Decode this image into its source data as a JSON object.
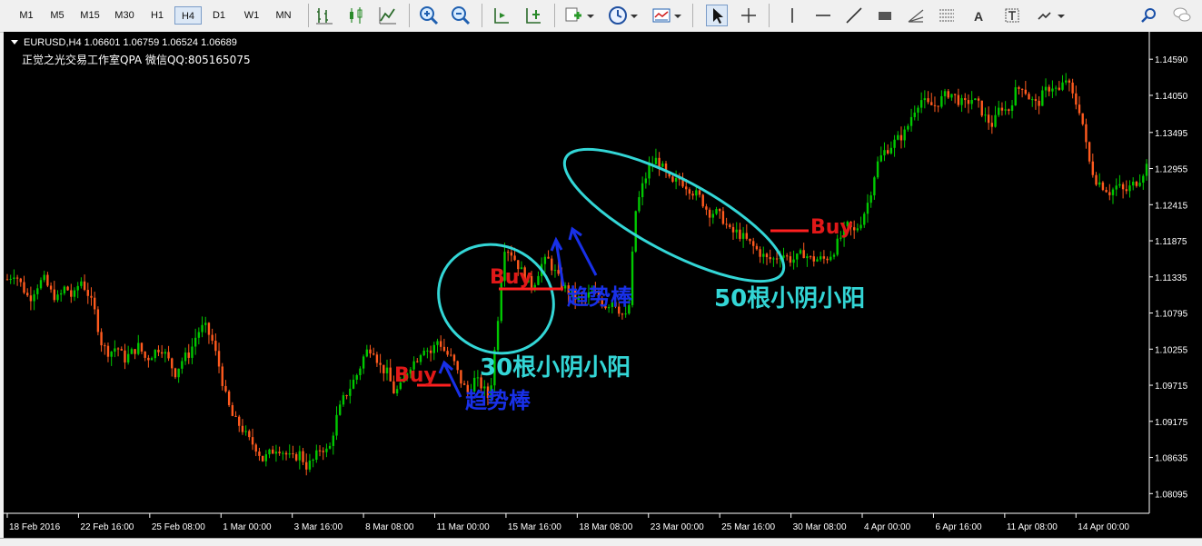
{
  "toolbar": {
    "timeframes": [
      "M1",
      "M5",
      "M15",
      "M30",
      "H1",
      "H4",
      "D1",
      "W1",
      "MN"
    ],
    "active_timeframe": "H4"
  },
  "chart": {
    "title_line": "EURUSD,H4  1.06601 1.06759 1.06524 1.06689",
    "subtitle": "正觉之光交易工作室QPA 微信QQ:805165075",
    "price_labels": [
      "1.14590",
      "1.14050",
      "1.13495",
      "1.12955",
      "1.12415",
      "1.11875",
      "1.11335",
      "1.10795",
      "1.10255",
      "1.09715",
      "1.09175",
      "1.08635",
      "1.08095"
    ],
    "time_labels": [
      "18 Feb 2016",
      "22 Feb 16:00",
      "25 Feb 08:00",
      "1 Mar 00:00",
      "3 Mar 16:00",
      "8 Mar 08:00",
      "11 Mar 00:00",
      "15 Mar 16:00",
      "18 Mar 08:00",
      "23 Mar 00:00",
      "25 Mar 16:00",
      "30 Mar 08:00",
      "4 Apr 00:00",
      "6 Apr 16:00",
      "11 Apr 08:00",
      "14 Apr 00:00"
    ],
    "up_color": "#00c800",
    "down_color": "#ff5a1e"
  },
  "chart_data": {
    "type": "candlestick",
    "symbol": "EURUSD",
    "timeframe": "H4",
    "ylim": [
      1.078,
      1.15
    ],
    "points": [
      1.113,
      1.114,
      1.112,
      1.11,
      1.112,
      1.113,
      1.111,
      1.11,
      1.112,
      1.11,
      1.113,
      1.111,
      1.108,
      1.103,
      1.102,
      1.103,
      1.101,
      1.102,
      1.103,
      1.101,
      1.102,
      1.103,
      1.101,
      1.099,
      1.101,
      1.102,
      1.105,
      1.106,
      1.104,
      1.1,
      1.095,
      1.092,
      1.091,
      1.089,
      1.088,
      1.086,
      1.087,
      1.088,
      1.087,
      1.086,
      1.087,
      1.085,
      1.086,
      1.088,
      1.087,
      1.092,
      1.095,
      1.097,
      1.099,
      1.102,
      1.103,
      1.1,
      1.099,
      1.096,
      1.097,
      1.1,
      1.101,
      1.103,
      1.102,
      1.104,
      1.102,
      1.101,
      1.098,
      1.096,
      1.098,
      1.097,
      1.095,
      1.105,
      1.118,
      1.117,
      1.115,
      1.113,
      1.112,
      1.115,
      1.116,
      1.114,
      1.112,
      1.111,
      1.11,
      1.11,
      1.111,
      1.11,
      1.109,
      1.11,
      1.108,
      1.107,
      1.123,
      1.127,
      1.13,
      1.131,
      1.129,
      1.127,
      1.128,
      1.127,
      1.126,
      1.125,
      1.123,
      1.123,
      1.122,
      1.12,
      1.12,
      1.119,
      1.118,
      1.117,
      1.116,
      1.116,
      1.117,
      1.116,
      1.116,
      1.117,
      1.116,
      1.116,
      1.116,
      1.117,
      1.119,
      1.121,
      1.12,
      1.122,
      1.125,
      1.13,
      1.132,
      1.133,
      1.134,
      1.135,
      1.138,
      1.14,
      1.139,
      1.139,
      1.14,
      1.141,
      1.14,
      1.139,
      1.14,
      1.139,
      1.137,
      1.136,
      1.139,
      1.138,
      1.141,
      1.142,
      1.14,
      1.139,
      1.141,
      1.142,
      1.141,
      1.143,
      1.14,
      1.138,
      1.131,
      1.128,
      1.127,
      1.126,
      1.127,
      1.126,
      1.127,
      1.128,
      1.13
    ]
  },
  "annotations": {
    "buy_label": "Buy",
    "trend_bar_label": "趋势棒",
    "count30_label": "30根小阴小阳",
    "count50_label": "50根小阴小阳"
  }
}
